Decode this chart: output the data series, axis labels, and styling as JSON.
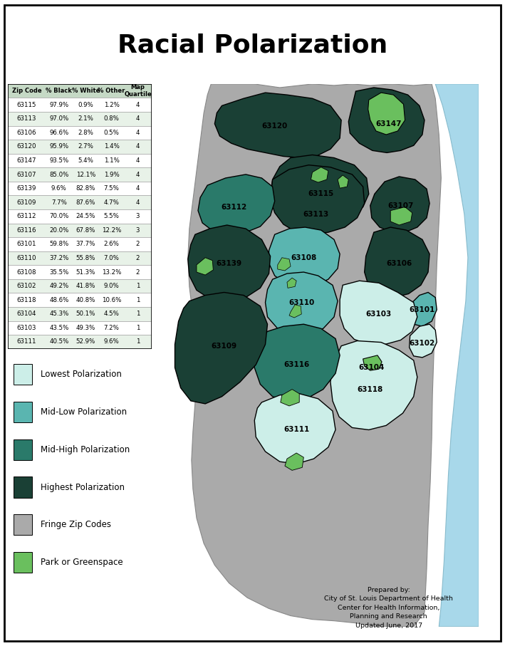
{
  "title": "Racial Polarization",
  "title_fontsize": 26,
  "title_fontweight": "bold",
  "background_color": "#ffffff",
  "table_data": [
    [
      "Zip Code",
      "% Black",
      "% White",
      "% Other",
      "Map\nQuartile"
    ],
    [
      "63115",
      "97.9%",
      "0.9%",
      "1.2%",
      "4"
    ],
    [
      "63113",
      "97.0%",
      "2.1%",
      "0.8%",
      "4"
    ],
    [
      "63106",
      "96.6%",
      "2.8%",
      "0.5%",
      "4"
    ],
    [
      "63120",
      "95.9%",
      "2.7%",
      "1.4%",
      "4"
    ],
    [
      "63147",
      "93.5%",
      "5.4%",
      "1.1%",
      "4"
    ],
    [
      "63107",
      "85.0%",
      "12.1%",
      "1.9%",
      "4"
    ],
    [
      "63139",
      "9.6%",
      "82.8%",
      "7.5%",
      "4"
    ],
    [
      "63109",
      "7.7%",
      "87.6%",
      "4.7%",
      "4"
    ],
    [
      "63112",
      "70.0%",
      "24.5%",
      "5.5%",
      "3"
    ],
    [
      "63116",
      "20.0%",
      "67.8%",
      "12.2%",
      "3"
    ],
    [
      "63101",
      "59.8%",
      "37.7%",
      "2.6%",
      "2"
    ],
    [
      "63110",
      "37.2%",
      "55.8%",
      "7.0%",
      "2"
    ],
    [
      "63108",
      "35.5%",
      "51.3%",
      "13.2%",
      "2"
    ],
    [
      "63102",
      "49.2%",
      "41.8%",
      "9.0%",
      "1"
    ],
    [
      "63118",
      "48.6%",
      "40.8%",
      "10.6%",
      "1"
    ],
    [
      "63104",
      "45.3%",
      "50.1%",
      "4.5%",
      "1"
    ],
    [
      "63103",
      "43.5%",
      "49.3%",
      "7.2%",
      "1"
    ],
    [
      "63111",
      "40.5%",
      "52.9%",
      "9.6%",
      "1"
    ]
  ],
  "colors": {
    "lowest": "#cceee8",
    "mid_low": "#5ab5b0",
    "mid_high": "#2a7a6a",
    "highest": "#1a4035",
    "fringe": "#aaaaaa",
    "park": "#6abf5e",
    "river": "#a8d8ea",
    "white": "#ffffff"
  },
  "legend_items": [
    [
      "lowest",
      "Lowest Polarization"
    ],
    [
      "mid_low",
      "Mid-Low Polarization"
    ],
    [
      "mid_high",
      "Mid-High Polarization"
    ],
    [
      "highest",
      "Highest Polarization"
    ],
    [
      "fringe",
      "Fringe Zip Codes"
    ],
    [
      "park",
      "Park or Greenspace"
    ]
  ],
  "credit_text": "Prepared by:\nCity of St. Louis Department of Health\nCenter for Health Information,\nPlanning and Research\nUpdated June, 2017",
  "zip_colors": {
    "63115": "highest",
    "63113": "highest",
    "63106": "highest",
    "63120": "highest",
    "63147": "highest",
    "63107": "highest",
    "63139": "highest",
    "63109": "highest",
    "63112": "mid_high",
    "63116": "mid_high",
    "63101": "mid_low",
    "63110": "mid_low",
    "63108": "mid_low",
    "63102": "lowest",
    "63118": "lowest",
    "63104": "lowest",
    "63103": "lowest",
    "63111": "lowest"
  },
  "label_color": {
    "63115": "black",
    "63113": "black",
    "63106": "black",
    "63120": "black",
    "63147": "black",
    "63107": "black",
    "63139": "black",
    "63109": "black",
    "63112": "black",
    "63116": "black",
    "63101": "black",
    "63110": "black",
    "63108": "black",
    "63102": "black",
    "63118": "black",
    "63104": "black",
    "63103": "black",
    "63111": "black"
  }
}
